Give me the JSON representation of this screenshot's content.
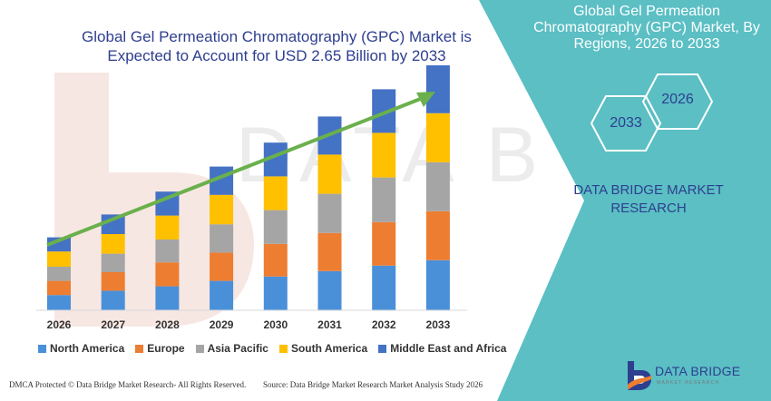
{
  "chart_data": {
    "type": "bar",
    "stacked": true,
    "title": "Global Gel Permeation Chromatography (GPC) Market is Expected to Account for USD 2.65 Billion by 2033",
    "categories": [
      "2026",
      "2027",
      "2028",
      "2029",
      "2030",
      "2031",
      "2032",
      "2033"
    ],
    "series": [
      {
        "name": "North America",
        "color": "#4a90d9",
        "values": [
          14,
          18,
          22,
          27,
          31,
          36,
          41,
          46
        ]
      },
      {
        "name": "Europe",
        "color": "#ed7d31",
        "values": [
          13,
          17,
          22,
          26,
          30,
          35,
          40,
          45
        ]
      },
      {
        "name": "Asia Pacific",
        "color": "#a5a5a5",
        "values": [
          13,
          17,
          21,
          26,
          31,
          36,
          41,
          45
        ]
      },
      {
        "name": "South America",
        "color": "#ffc000",
        "values": [
          14,
          18,
          22,
          27,
          31,
          36,
          41,
          45
        ]
      },
      {
        "name": "Middle East and Africa",
        "color": "#4472c4",
        "values": [
          13,
          18,
          22,
          26,
          31,
          35,
          40,
          44
        ]
      }
    ],
    "ylim": [
      0,
      250
    ],
    "grid": false,
    "legend": "bottom",
    "trend_arrow_color": "#6ab04c"
  },
  "side_panel": {
    "title": "Global Gel Permeation Chromatography (GPC) Market, By Regions, 2026 to 2033",
    "hex_start": "2026",
    "hex_end": "2033",
    "company": "DATA BRIDGE MARKET RESEARCH",
    "color": "#5bbfc4"
  },
  "footer": {
    "left": "DMCA Protected © Data Bridge Market Research- All Rights Reserved.",
    "right": "Source: Data Bridge Market Research  Market Analysis Study 2026"
  },
  "logo": {
    "name": "DATA BRIDGE",
    "sub": "MARKET RESEARCH",
    "watermark": "DATA BRIDGE"
  }
}
